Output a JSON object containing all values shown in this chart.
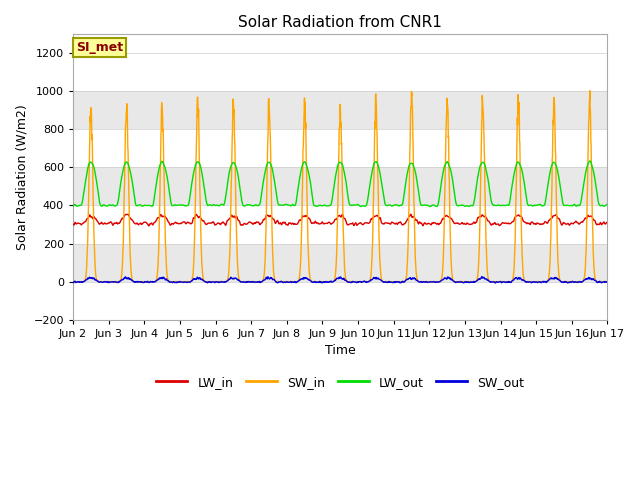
{
  "title": "Solar Radiation from CNR1",
  "xlabel": "Time",
  "ylabel": "Solar Radiation (W/m2)",
  "ylim": [
    -200,
    1300
  ],
  "yticks": [
    -200,
    0,
    200,
    400,
    600,
    800,
    1000,
    1200
  ],
  "annotation_text": "SI_met",
  "annotation_color": "#8B0000",
  "annotation_bg": "#FFFF99",
  "annotation_border": "#999900",
  "bg_color": "#ffffff",
  "plot_bg": "#ffffff",
  "band_colors": [
    "#ffffff",
    "#e8e8e8"
  ],
  "grid_color": "#cccccc",
  "colors": {
    "LW_in": "#dd0000",
    "SW_in": "#FFA500",
    "LW_out": "#00dd00",
    "SW_out": "#0000dd"
  },
  "legend_labels": [
    "LW_in",
    "SW_in",
    "LW_out",
    "SW_out"
  ],
  "x_tick_labels": [
    "Jun 2",
    "Jun 3",
    "Jun 4",
    "Jun 5",
    "Jun 6",
    "Jun 7",
    "Jun 8",
    "Jun 9",
    "Jun 10",
    "Jun 11",
    "Jun 12",
    "Jun 13",
    "Jun 14",
    "Jun 15",
    "Jun 16",
    "Jun 17"
  ],
  "n_days": 15,
  "pts_per_day": 144,
  "SW_peaks": [
    960,
    975,
    970,
    1000,
    990,
    1000,
    1005,
    960,
    1000,
    1040,
    1030,
    1020,
    1000,
    1000,
    1020
  ]
}
